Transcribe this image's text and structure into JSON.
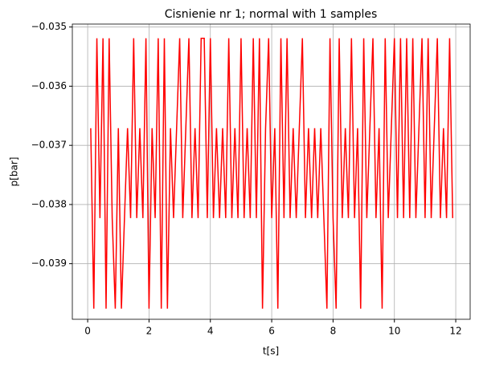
{
  "chart_data": {
    "type": "line",
    "title": "Cisnienie nr 1; normal with 1 samples",
    "x_label": "t[s]",
    "y_label": "p[bar]",
    "x": [
      0.1,
      0.2,
      0.3,
      0.4,
      0.5,
      0.6,
      0.7,
      0.8,
      0.9,
      1.0,
      1.1,
      1.2,
      1.3,
      1.4,
      1.5,
      1.6,
      1.7,
      1.8,
      1.9,
      2.0,
      2.1,
      2.2,
      2.3,
      2.4,
      2.5,
      2.6,
      2.7,
      2.8,
      2.9,
      3.0,
      3.1,
      3.2,
      3.3,
      3.4,
      3.5,
      3.6,
      3.7,
      3.8,
      3.9,
      4.0,
      4.1,
      4.2,
      4.3,
      4.4,
      4.5,
      4.6,
      4.7,
      4.8,
      4.9,
      5.0,
      5.1,
      5.2,
      5.3,
      5.4,
      5.5,
      5.6,
      5.7,
      5.8,
      5.9,
      6.0,
      6.1,
      6.2,
      6.3,
      6.4,
      6.5,
      6.6,
      6.7,
      6.8,
      6.9,
      7.0,
      7.1,
      7.2,
      7.3,
      7.4,
      7.5,
      7.6,
      7.7,
      7.8,
      7.9,
      8.0,
      8.1,
      8.2,
      8.3,
      8.4,
      8.5,
      8.6,
      8.7,
      8.8,
      8.9,
      9.0,
      9.1,
      9.2,
      9.3,
      9.4,
      9.5,
      9.6,
      9.7,
      9.8,
      9.9,
      10.0,
      10.1,
      10.2,
      10.3,
      10.4,
      10.5,
      10.6,
      10.7,
      10.8,
      10.9,
      11.0,
      11.1,
      11.2,
      11.3,
      11.4,
      11.5,
      11.6,
      11.7,
      11.8,
      11.9
    ],
    "series": [
      {
        "name": "p",
        "color": "#ff0000",
        "values": [
          -0.03671,
          -0.03976,
          -0.03519,
          -0.03823,
          -0.03519,
          -0.03976,
          -0.03519,
          -0.03823,
          -0.03976,
          -0.03671,
          -0.03976,
          -0.03823,
          -0.03671,
          -0.03823,
          -0.03519,
          -0.03823,
          -0.03671,
          -0.03823,
          -0.03519,
          -0.03976,
          -0.03671,
          -0.03823,
          -0.03519,
          -0.03976,
          -0.03519,
          -0.03976,
          -0.03671,
          -0.03823,
          -0.03671,
          -0.03519,
          -0.03823,
          -0.03671,
          -0.03519,
          -0.03823,
          -0.03671,
          -0.03823,
          -0.03519,
          -0.03519,
          -0.03823,
          -0.03519,
          -0.03823,
          -0.03671,
          -0.03823,
          -0.03671,
          -0.03823,
          -0.03519,
          -0.03823,
          -0.03671,
          -0.03823,
          -0.03519,
          -0.03823,
          -0.03671,
          -0.03823,
          -0.03519,
          -0.03823,
          -0.03519,
          -0.03976,
          -0.03671,
          -0.03519,
          -0.03823,
          -0.03671,
          -0.03976,
          -0.03519,
          -0.03823,
          -0.03519,
          -0.03823,
          -0.03671,
          -0.03823,
          -0.03671,
          -0.03519,
          -0.03823,
          -0.03671,
          -0.03823,
          -0.03671,
          -0.03823,
          -0.03671,
          -0.03823,
          -0.03976,
          -0.03519,
          -0.03823,
          -0.03976,
          -0.03519,
          -0.03823,
          -0.03671,
          -0.03823,
          -0.03519,
          -0.03823,
          -0.03671,
          -0.03976,
          -0.03519,
          -0.03823,
          -0.03671,
          -0.03519,
          -0.03823,
          -0.03671,
          -0.03976,
          -0.03519,
          -0.03823,
          -0.03671,
          -0.03519,
          -0.03823,
          -0.03519,
          -0.03823,
          -0.03519,
          -0.03823,
          -0.03519,
          -0.03823,
          -0.03671,
          -0.03519,
          -0.03823,
          -0.03519,
          -0.03823,
          -0.03671,
          -0.03519,
          -0.03823,
          -0.03671,
          -0.03823,
          -0.03519,
          -0.03823
        ]
      }
    ],
    "xlim": [
      -0.5,
      12.47
    ],
    "ylim": [
      -0.03994,
      -0.03495
    ],
    "xticks": [
      0,
      2,
      4,
      6,
      8,
      10,
      12
    ],
    "yticks": [
      {
        "value": -0.039,
        "label": "−0.039"
      },
      {
        "value": -0.038,
        "label": "−0.038"
      },
      {
        "value": -0.037,
        "label": "−0.037"
      },
      {
        "value": -0.036,
        "label": "−0.036"
      },
      {
        "value": -0.035,
        "label": "−0.035"
      }
    ],
    "grid": true
  }
}
